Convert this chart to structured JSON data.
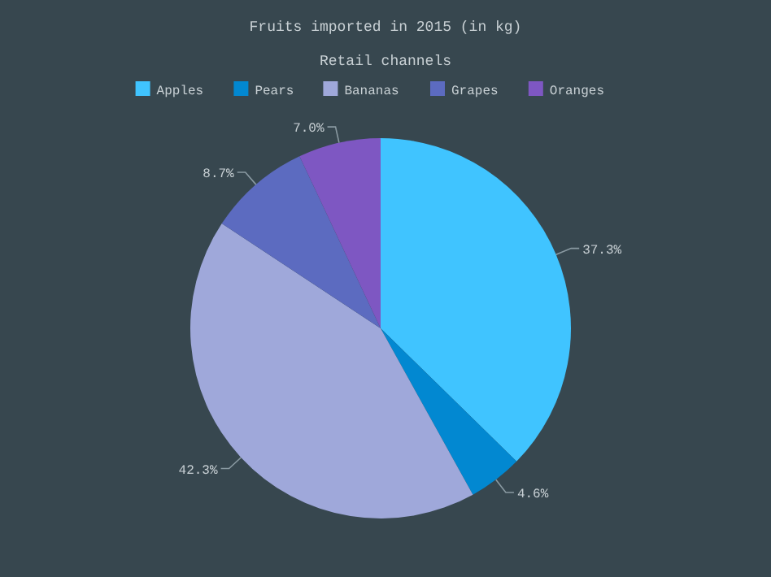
{
  "chart_data": {
    "type": "pie",
    "title": "Fruits imported in 2015 (in kg)",
    "legend_title": "Retail channels",
    "legend": "top",
    "categories": [
      "Apples",
      "Pears",
      "Bananas",
      "Grapes",
      "Oranges"
    ],
    "values": [
      37.3,
      4.6,
      42.3,
      8.7,
      7.0
    ],
    "value_labels": [
      "37.3%",
      "4.6%",
      "42.3%",
      "8.7%",
      "7.0%"
    ],
    "colors": [
      "#40c4ff",
      "#0288d1",
      "#9fa8da",
      "#5c6bc0",
      "#7e57c2"
    ]
  }
}
